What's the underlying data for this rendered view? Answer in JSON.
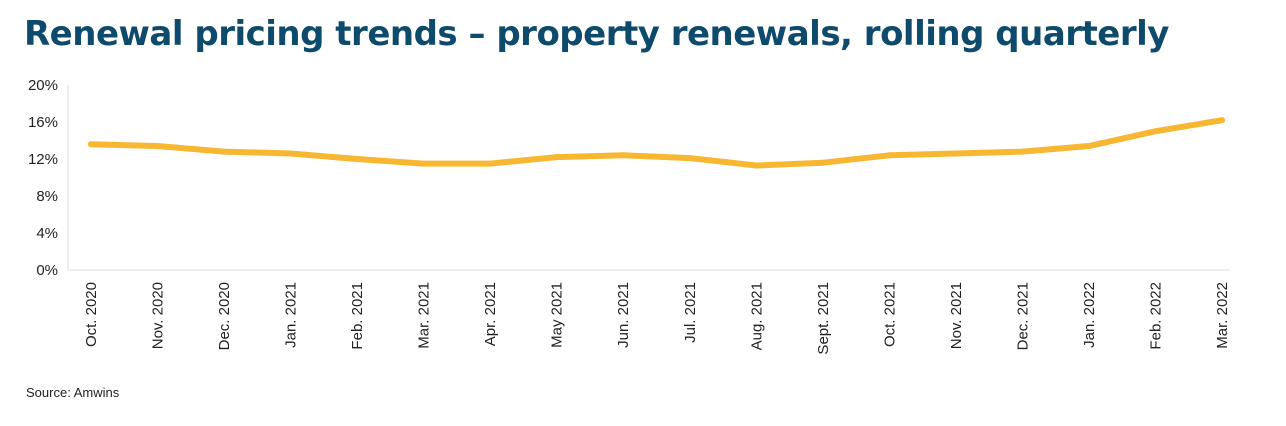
{
  "title": "Renewal pricing trends – property renewals, rolling quarterly",
  "source": "Source: Amwins",
  "colors": {
    "line": "#f8b733",
    "title": "#0d4a6b",
    "axis": "#dddddd"
  },
  "chart_data": {
    "type": "line",
    "title": "Renewal pricing trends – property renewals, rolling quarterly",
    "xlabel": "",
    "ylabel": "",
    "ylim": [
      0,
      20
    ],
    "yticks": [
      0,
      4,
      8,
      12,
      16,
      20
    ],
    "ytick_labels": [
      "0%",
      "4%",
      "8%",
      "12%",
      "16%",
      "20%"
    ],
    "grid": false,
    "legend": "none",
    "categories": [
      "Oct. 2020",
      "Nov. 2020",
      "Dec. 2020",
      "Jan. 2021",
      "Feb. 2021",
      "Mar. 2021",
      "Apr. 2021",
      "May 2021",
      "Jun. 2021",
      "Jul. 2021",
      "Aug. 2021",
      "Sept. 2021",
      "Oct. 2021",
      "Nov. 2021",
      "Dec. 2021",
      "Jan. 2022",
      "Feb. 2022",
      "Mar. 2022"
    ],
    "series": [
      {
        "values": [
          13.6,
          13.4,
          12.8,
          12.6,
          12.0,
          11.5,
          11.5,
          12.2,
          12.4,
          12.1,
          11.3,
          11.6,
          12.4,
          12.6,
          12.8,
          13.4,
          15.0,
          16.2
        ]
      }
    ]
  }
}
